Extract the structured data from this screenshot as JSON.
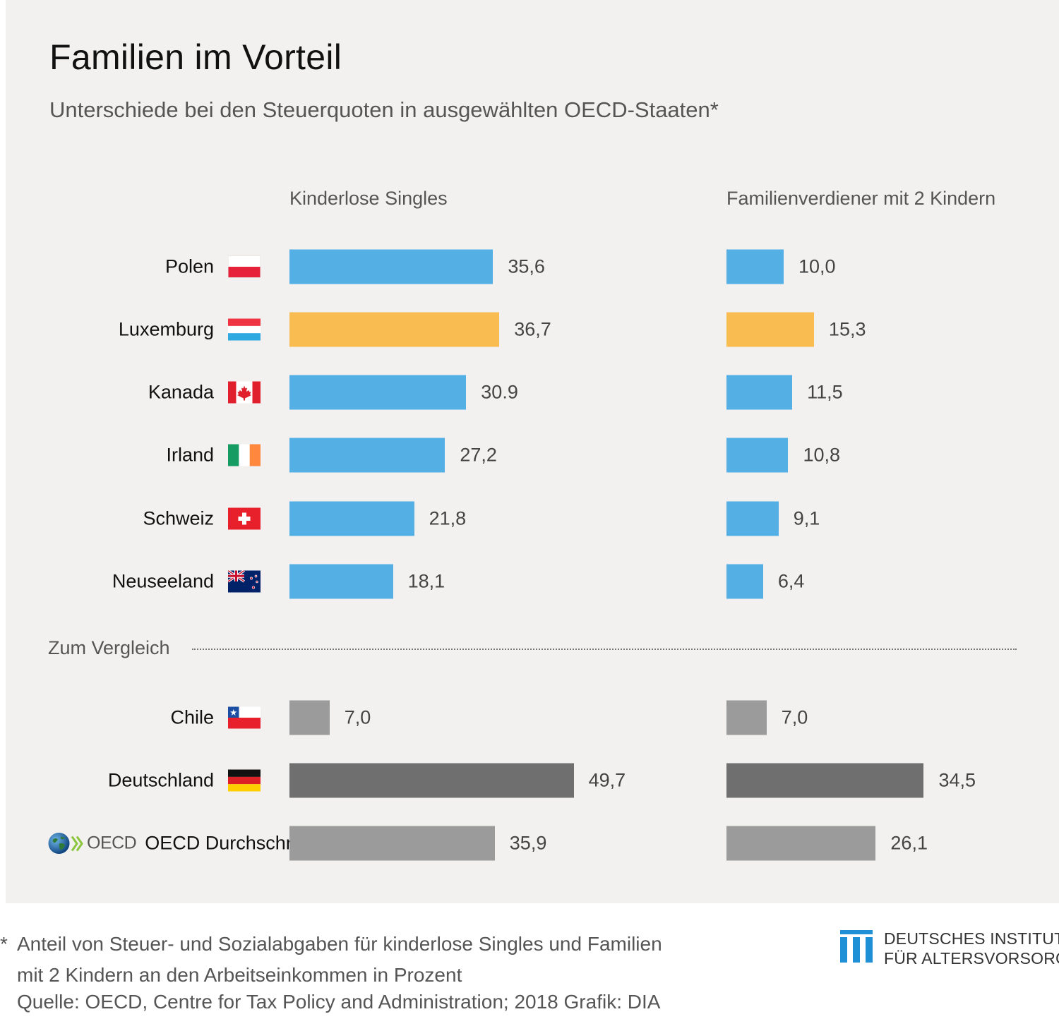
{
  "title": "Familien im Vorteil",
  "subtitle": "Unterschiede bei den Steuerquoten in ausgewählten OECD-Staaten*",
  "section_label": "Zum Vergleich",
  "oecd_wordmark": "OECD",
  "footnote": {
    "star": "*",
    "line1": "Anteil von Steuer- und Sozialabgaben für kinderlose Singles und Familien",
    "line2": "mit 2 Kindern an den Arbeitseinkommen in Prozent"
  },
  "source": "Quelle: OECD, Centre for Tax Policy and Administration; 2018  Grafik: DIA",
  "logo": {
    "line1": "DEUTSCHES INSTITUT",
    "line2": "FÜR ALTERSVORSORGE"
  },
  "colors": {
    "highlight_blue": "#54b0e4",
    "highlight_orange": "#f9bc50",
    "compare_gray": "#9b9b9b",
    "germany_gray": "#6f6f6f",
    "logo_blue": "#1f8fd6"
  },
  "chart_data": {
    "type": "bar",
    "orientation": "horizontal",
    "categories": [
      "Polen",
      "Luxemburg",
      "Kanada",
      "Irland",
      "Schweiz",
      "Neuseeland",
      "Chile",
      "Deutschland",
      "OECD Durchschnitt"
    ],
    "flags": [
      "poland-flag",
      "luxembourg-flag",
      "canada-flag",
      "ireland-flag",
      "switzerland-flag",
      "new-zealand-flag",
      "chile-flag",
      "germany-flag",
      "oecd-logo"
    ],
    "bar_colors": [
      "highlight_blue",
      "highlight_orange",
      "highlight_blue",
      "highlight_blue",
      "highlight_blue",
      "highlight_blue",
      "compare_gray",
      "germany_gray",
      "compare_gray"
    ],
    "series": [
      {
        "name": "Kinderlose Singles",
        "values": [
          35.6,
          36.7,
          30.9,
          27.2,
          21.8,
          18.1,
          7.0,
          49.7,
          35.9
        ],
        "labels": [
          "35,6",
          "36,7",
          "30.9",
          "27,2",
          "21,8",
          "18,1",
          "7,0",
          "49,7",
          "35,9"
        ]
      },
      {
        "name": "Familienverdiener mit 2 Kindern",
        "values": [
          10.0,
          15.3,
          11.5,
          10.8,
          9.1,
          6.4,
          7.0,
          34.5,
          26.1
        ],
        "labels": [
          "10,0",
          "15,3",
          "11,5",
          "10,8",
          "9,1",
          "6,4",
          "7,0",
          "34,5",
          "26,1"
        ]
      }
    ],
    "grid": false,
    "legend": "none"
  }
}
